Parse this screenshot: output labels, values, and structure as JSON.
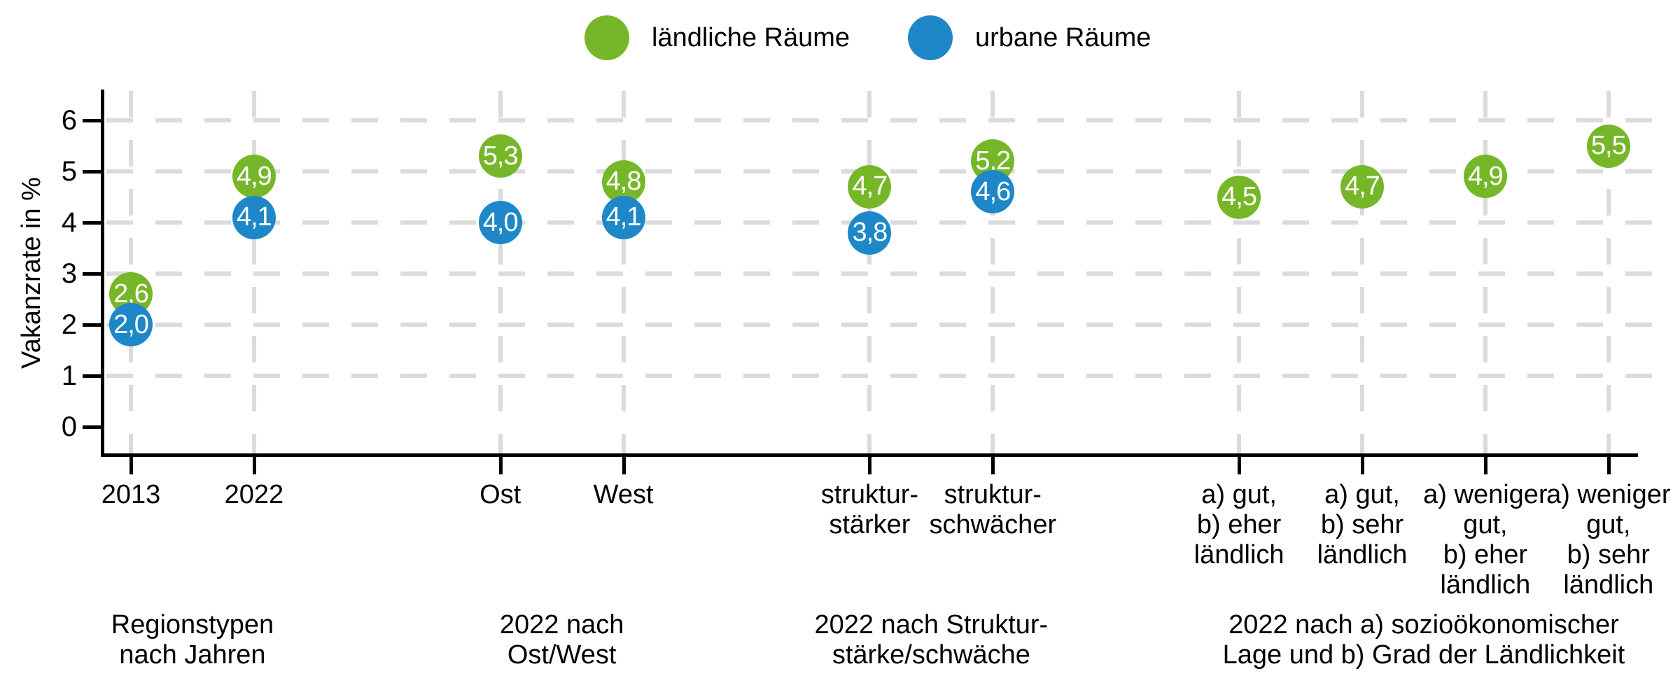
{
  "legend": {
    "items": [
      {
        "label": "ländliche Räume",
        "color": "#76B72A"
      },
      {
        "label": "urbane Räume",
        "color": "#1E87C8"
      }
    ]
  },
  "y_axis": {
    "title": "Vakanzrate in %",
    "ticks": [
      "0",
      "1",
      "2",
      "3",
      "4",
      "5",
      "6"
    ]
  },
  "chart_data": {
    "type": "scatter",
    "title": "",
    "xlabel": "",
    "ylabel": "Vakanzrate in %",
    "ylim": [
      0,
      6
    ],
    "grid": "dashed light-gray, horizontal at 1-6 and vertical per category",
    "legend_position": "top-center",
    "series_names": [
      "ländliche Räume",
      "urbane Räume"
    ],
    "series_colors": {
      "ländliche Räume": "#76B72A",
      "urbane Räume": "#1E87C8"
    },
    "groups": [
      {
        "caption_lines": [
          "Regionstypen",
          "nach Jahren"
        ],
        "categories": [
          {
            "tick_lines": [
              "2013"
            ],
            "points": [
              {
                "series": "ländliche Räume",
                "value": 2.6,
                "label": "2,6"
              },
              {
                "series": "urbane Räume",
                "value": 2.0,
                "label": "2,0"
              }
            ]
          },
          {
            "tick_lines": [
              "2022"
            ],
            "points": [
              {
                "series": "ländliche Räume",
                "value": 4.9,
                "label": "4,9"
              },
              {
                "series": "urbane Räume",
                "value": 4.1,
                "label": "4,1"
              }
            ]
          }
        ]
      },
      {
        "caption_lines": [
          "2022 nach",
          "Ost/West"
        ],
        "categories": [
          {
            "tick_lines": [
              "Ost"
            ],
            "points": [
              {
                "series": "ländliche Räume",
                "value": 5.3,
                "label": "5,3"
              },
              {
                "series": "urbane Räume",
                "value": 4.0,
                "label": "4,0"
              }
            ]
          },
          {
            "tick_lines": [
              "West"
            ],
            "points": [
              {
                "series": "ländliche Räume",
                "value": 4.8,
                "label": "4,8"
              },
              {
                "series": "urbane Räume",
                "value": 4.1,
                "label": "4,1"
              }
            ]
          }
        ]
      },
      {
        "caption_lines": [
          "2022 nach Struktur-",
          "stärke/schwäche"
        ],
        "categories": [
          {
            "tick_lines": [
              "struktur-",
              "stärker"
            ],
            "points": [
              {
                "series": "ländliche Räume",
                "value": 4.7,
                "label": "4,7"
              },
              {
                "series": "urbane Räume",
                "value": 3.8,
                "label": "3,8"
              }
            ]
          },
          {
            "tick_lines": [
              "struktur-",
              "schwächer"
            ],
            "points": [
              {
                "series": "ländliche Räume",
                "value": 5.2,
                "label": "5,2"
              },
              {
                "series": "urbane Räume",
                "value": 4.6,
                "label": "4,6"
              }
            ]
          }
        ]
      },
      {
        "caption_lines": [
          "2022 nach a) sozioökonomischer",
          "Lage und b) Grad der Ländlichkeit"
        ],
        "categories": [
          {
            "tick_lines": [
              "a) gut,",
              "b) eher",
              "ländlich"
            ],
            "points": [
              {
                "series": "ländliche Räume",
                "value": 4.5,
                "label": "4,5"
              }
            ]
          },
          {
            "tick_lines": [
              "a) gut,",
              "b) sehr",
              "ländlich"
            ],
            "points": [
              {
                "series": "ländliche Räume",
                "value": 4.7,
                "label": "4,7"
              }
            ]
          },
          {
            "tick_lines": [
              "a) weniger",
              "gut,",
              "b) eher",
              "ländlich"
            ],
            "points": [
              {
                "series": "ländliche Räume",
                "value": 4.9,
                "label": "4,9"
              }
            ]
          },
          {
            "tick_lines": [
              "a) weniger",
              "gut,",
              "b) sehr",
              "ländlich"
            ],
            "points": [
              {
                "series": "ländliche Räume",
                "value": 5.5,
                "label": "5,5"
              }
            ]
          }
        ]
      }
    ]
  }
}
